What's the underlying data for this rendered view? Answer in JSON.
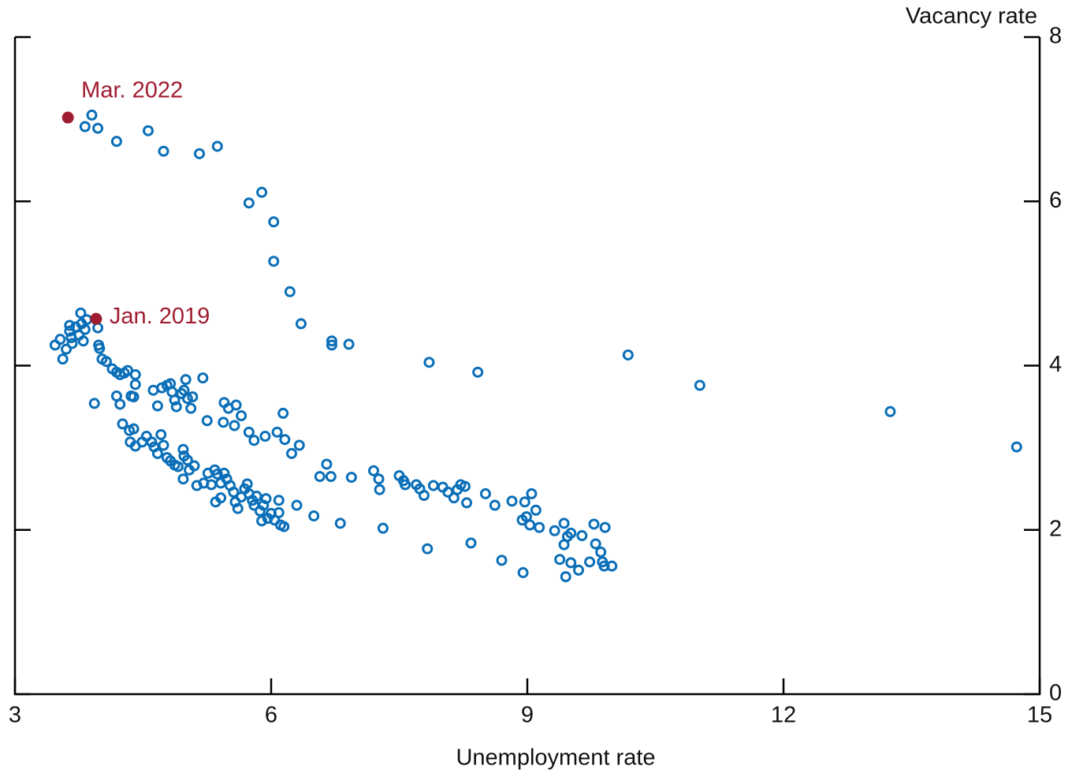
{
  "chart_data": {
    "type": "scatter",
    "xlabel": "Unemployment rate",
    "ylabel": "Vacancy rate",
    "xlim": [
      3,
      15
    ],
    "ylim": [
      0,
      8
    ],
    "xticks": [
      3,
      6,
      9,
      12,
      15
    ],
    "yticks": [
      0,
      2,
      4,
      6,
      8
    ],
    "series": [
      {
        "color": "#0a6fb8",
        "x": [
          3.9,
          3.82,
          3.97,
          4.19,
          4.56,
          4.74,
          5.16,
          5.37,
          5.74,
          5.89,
          6.03,
          6.03,
          6.22,
          6.35,
          6.71,
          6.71,
          6.91,
          7.85,
          8.42,
          10.18,
          11.02,
          13.25,
          14.73,
          3.47,
          3.53,
          3.56,
          3.6,
          3.64,
          3.64,
          3.66,
          3.67,
          3.71,
          3.75,
          3.77,
          3.78,
          3.8,
          3.82,
          3.84,
          3.97,
          3.98,
          3.99,
          4.02,
          4.07,
          4.14,
          4.19,
          4.23,
          4.28,
          4.32,
          4.41,
          4.41,
          4.36,
          4.39,
          4.19,
          4.23,
          3.93,
          4.62,
          4.72,
          4.78,
          4.82,
          4.84,
          4.87,
          4.89,
          4.95,
          4.98,
          5.0,
          5.02,
          5.06,
          5.08,
          5.2,
          4.67,
          5.25,
          5.44,
          5.45,
          5.5,
          5.59,
          5.65,
          5.57,
          5.74,
          5.8,
          5.93,
          6.07,
          6.14,
          6.16,
          6.24,
          6.33,
          4.26,
          4.34,
          4.39,
          4.35,
          4.41,
          4.49,
          4.54,
          4.6,
          4.63,
          4.67,
          4.71,
          4.74,
          4.78,
          4.82,
          4.87,
          4.91,
          4.97,
          4.98,
          5.02,
          5.04,
          5.1,
          4.97,
          5.13,
          5.21,
          5.26,
          5.3,
          5.34,
          5.37,
          5.41,
          5.45,
          5.48,
          5.35,
          5.41,
          5.52,
          5.56,
          5.58,
          5.61,
          5.65,
          5.69,
          5.72,
          5.74,
          5.78,
          5.8,
          5.83,
          5.87,
          5.91,
          5.94,
          5.89,
          5.96,
          6.0,
          6.04,
          6.09,
          6.09,
          6.11,
          6.15,
          6.3,
          6.5,
          6.81,
          7.31,
          6.65,
          6.57,
          6.7,
          6.94,
          7.2,
          7.26,
          7.27,
          7.5,
          7.55,
          7.57,
          7.7,
          7.74,
          7.79,
          7.9,
          8.01,
          8.07,
          8.14,
          8.18,
          8.22,
          8.27,
          8.29,
          8.51,
          8.62,
          8.82,
          8.97,
          9.05,
          8.94,
          8.99,
          9.03,
          9.1,
          9.14,
          9.32,
          9.43,
          9.43,
          9.47,
          9.51,
          9.64,
          9.78,
          9.91,
          9.8,
          9.86,
          9.88,
          9.73,
          9.9,
          9.99,
          9.38,
          9.51,
          9.6,
          9.45,
          8.7,
          8.95,
          8.34,
          7.83
        ],
        "y": [
          7.05,
          6.91,
          6.89,
          6.73,
          6.86,
          6.61,
          6.58,
          6.67,
          5.98,
          6.11,
          5.75,
          5.27,
          4.9,
          4.51,
          4.3,
          4.25,
          4.26,
          4.04,
          3.92,
          4.13,
          3.76,
          3.44,
          3.01,
          4.25,
          4.32,
          4.08,
          4.2,
          4.49,
          4.42,
          4.34,
          4.27,
          4.47,
          4.37,
          4.64,
          4.51,
          4.3,
          4.44,
          4.56,
          4.46,
          4.25,
          4.21,
          4.08,
          4.05,
          3.96,
          3.92,
          3.89,
          3.91,
          3.94,
          3.89,
          3.77,
          3.63,
          3.62,
          3.63,
          3.53,
          3.54,
          3.7,
          3.73,
          3.76,
          3.78,
          3.68,
          3.58,
          3.5,
          3.66,
          3.7,
          3.83,
          3.6,
          3.48,
          3.62,
          3.85,
          3.51,
          3.33,
          3.31,
          3.55,
          3.48,
          3.52,
          3.39,
          3.27,
          3.19,
          3.09,
          3.14,
          3.19,
          3.42,
          3.1,
          2.93,
          3.03,
          3.29,
          3.21,
          3.23,
          3.07,
          3.02,
          3.07,
          3.14,
          3.07,
          3.01,
          2.93,
          3.16,
          3.03,
          2.88,
          2.84,
          2.79,
          2.77,
          2.98,
          2.9,
          2.85,
          2.73,
          2.78,
          2.62,
          2.54,
          2.57,
          2.69,
          2.55,
          2.73,
          2.68,
          2.57,
          2.69,
          2.62,
          2.34,
          2.39,
          2.54,
          2.46,
          2.34,
          2.26,
          2.4,
          2.5,
          2.56,
          2.44,
          2.36,
          2.3,
          2.41,
          2.23,
          2.3,
          2.38,
          2.11,
          2.14,
          2.2,
          2.12,
          2.36,
          2.21,
          2.06,
          2.04,
          2.3,
          2.17,
          2.08,
          2.02,
          2.8,
          2.65,
          2.65,
          2.64,
          2.72,
          2.62,
          2.49,
          2.66,
          2.6,
          2.55,
          2.55,
          2.5,
          2.42,
          2.54,
          2.52,
          2.46,
          2.39,
          2.49,
          2.55,
          2.53,
          2.33,
          2.44,
          2.3,
          2.35,
          2.34,
          2.44,
          2.12,
          2.16,
          2.06,
          2.24,
          2.03,
          1.99,
          2.08,
          1.82,
          1.92,
          1.96,
          1.93,
          2.07,
          2.03,
          1.83,
          1.73,
          1.61,
          1.61,
          1.56,
          1.56,
          1.64,
          1.6,
          1.51,
          1.43,
          1.63,
          1.48,
          1.84,
          1.77
        ]
      }
    ],
    "annotations": [
      {
        "text": "Mar. 2022",
        "x": 3.62,
        "y": 7.02,
        "color": "#a01c30"
      },
      {
        "text": "Jan. 2019",
        "x": 3.95,
        "y": 4.57,
        "color": "#a01c30"
      }
    ]
  }
}
